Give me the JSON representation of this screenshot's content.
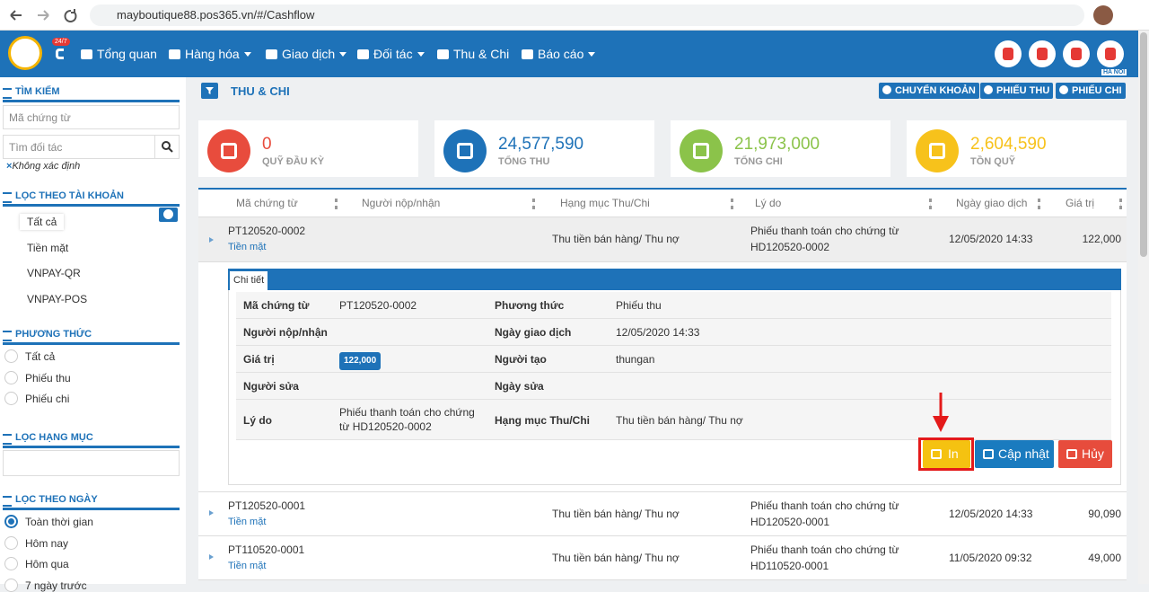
{
  "browser": {
    "url": "mayboutique88.pos365.vn/#/Cashflow"
  },
  "nav": {
    "badge": "24/7",
    "items": [
      "Tổng quan",
      "Hàng hóa",
      "Giao dịch",
      "Đối tác",
      "Thu & Chi",
      "Báo cáo"
    ],
    "location": "HA NOI"
  },
  "sidebar": {
    "search_title": "TÌM KIẾM",
    "voucher_placeholder": "Mã chứng từ",
    "partner_placeholder": "Tìm đối tác",
    "partner_filter": "Không xác định",
    "account_title": "LỌC THEO TÀI KHOẢN",
    "accounts": [
      "Tất cả",
      "Tiền mặt",
      "VNPAY-QR",
      "VNPAY-POS"
    ],
    "method_title": "PHƯƠNG THỨC",
    "methods": [
      "Tất cả",
      "Phiếu thu",
      "Phiếu chi"
    ],
    "category_title": "LỌC HẠNG MỤC",
    "date_title": "LỌC THEO NGÀY",
    "dates": [
      "Toàn thời gian",
      "Hôm nay",
      "Hôm qua",
      "7 ngày trước"
    ]
  },
  "header": {
    "title": "THU & CHI",
    "buttons": [
      "CHUYỂN KHOẢN",
      "PHIẾU THU",
      "PHIẾU CHI"
    ]
  },
  "summary": [
    {
      "value": "0",
      "label": "QUỸ ĐẦU KỲ",
      "color": "#e84c3d"
    },
    {
      "value": "24,577,590",
      "label": "TỔNG THU",
      "color": "#1e72b8"
    },
    {
      "value": "21,973,000",
      "label": "TỔNG CHI",
      "color": "#8bc34a"
    },
    {
      "value": "2,604,590",
      "label": "TỒN QUỸ",
      "color": "#f7c21b"
    }
  ],
  "table": {
    "columns": [
      "Mã chứng từ",
      "Người nộp/nhận",
      "Hạng mục Thu/Chi",
      "Lý do",
      "Ngày giao dịch",
      "Giá trị"
    ],
    "rows": [
      {
        "code": "PT120520-0002",
        "account": "Tiền mặt",
        "category": "Thu tiền bán hàng/ Thu nợ",
        "reason": "Phiếu thanh toán cho chứng từ HD120520-0002",
        "date": "12/05/2020 14:33",
        "value": "122,000"
      },
      {
        "code": "PT120520-0001",
        "account": "Tiền mặt",
        "category": "Thu tiền bán hàng/ Thu nợ",
        "reason": "Phiếu thanh toán cho chứng từ HD120520-0001",
        "date": "12/05/2020 14:33",
        "value": "90,090"
      },
      {
        "code": "PT110520-0001",
        "account": "Tiền mặt",
        "category": "Thu tiền bán hàng/ Thu nợ",
        "reason": "Phiếu thanh toán cho chứng từ HD110520-0001",
        "date": "11/05/2020 09:32",
        "value": "49,000"
      }
    ]
  },
  "detail": {
    "tab": "Chi tiết",
    "fields": [
      {
        "label": "Mã chứng từ",
        "value": "PT120520-0002"
      },
      {
        "label": "Phương thức",
        "value": "Phiếu thu"
      },
      {
        "label": "Người nộp/nhận"
      },
      {
        "label": "Ngày giao dịch",
        "value": "12/05/2020 14:33"
      },
      {
        "label": "Giá trị",
        "value": "122,000"
      },
      {
        "label": "Người tạo",
        "value": "thungan"
      },
      {
        "label": "Người sửa"
      },
      {
        "label": "Ngày sửa"
      },
      {
        "label": "Lý do",
        "value": "Phiếu thanh toán cho chứng từ HD120520-0002"
      },
      {
        "label": "Hạng mục Thu/Chi",
        "value": "Thu tiền bán hàng/ Thu nợ"
      }
    ],
    "buttons": [
      "In",
      "Cập nhật",
      "Hủy"
    ]
  }
}
